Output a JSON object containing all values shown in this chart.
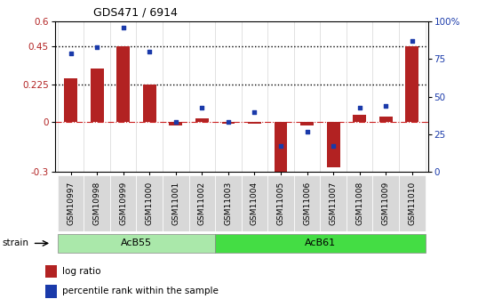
{
  "title": "GDS471 / 6914",
  "categories": [
    "GSM10997",
    "GSM10998",
    "GSM10999",
    "GSM11000",
    "GSM11001",
    "GSM11002",
    "GSM11003",
    "GSM11004",
    "GSM11005",
    "GSM11006",
    "GSM11007",
    "GSM11008",
    "GSM11009",
    "GSM11010"
  ],
  "log_ratio": [
    0.26,
    0.32,
    0.45,
    0.225,
    -0.02,
    0.02,
    -0.01,
    -0.01,
    -0.35,
    -0.02,
    -0.27,
    0.04,
    0.03,
    0.45
  ],
  "percentile_rank": [
    79,
    83,
    96,
    80,
    33,
    43,
    33,
    40,
    17,
    27,
    17,
    43,
    44,
    87
  ],
  "strain_labels": [
    "AcB55",
    "AcB61"
  ],
  "strain_split": 6,
  "hline_y1": 0.45,
  "hline_y2": 0.225,
  "bar_color": "#b22222",
  "dot_color": "#1a3aaa",
  "zero_line_color": "#cc2222",
  "background_color": "#ffffff",
  "ylim_left": [
    -0.3,
    0.6
  ],
  "ylim_right": [
    0,
    100
  ],
  "yticks_left": [
    -0.3,
    0.0,
    0.225,
    0.45,
    0.6
  ],
  "yticks_right": [
    0,
    25,
    50,
    75,
    100
  ],
  "strain_color_1": "#aae8aa",
  "strain_color_2": "#44dd44",
  "legend_log_ratio": "log ratio",
  "legend_percentile": "percentile rank within the sample",
  "tick_label_bg": "#d8d8d8"
}
